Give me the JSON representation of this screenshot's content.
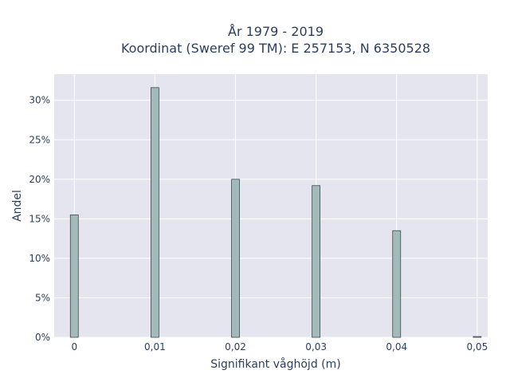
{
  "chart_data": {
    "type": "bar",
    "title_lines": [
      "År 1979 - 2019",
      "Koordinat (Sweref 99 TM): E 257153, N 6350528"
    ],
    "xlabel": "Signifikant våghöjd (m)",
    "ylabel": "Andel",
    "x": [
      0,
      0.01,
      0.02,
      0.03,
      0.04,
      0.05
    ],
    "x_tick_labels": [
      "0",
      "0,01",
      "0,02",
      "0,03",
      "0,04",
      "0,05"
    ],
    "values": [
      15.5,
      31.6,
      20.0,
      19.2,
      13.5,
      0.1
    ],
    "value_unit": "%",
    "y_tick_values": [
      0,
      5,
      10,
      15,
      20,
      25,
      30
    ],
    "y_tick_labels": [
      "0%",
      "5%",
      "10%",
      "15%",
      "20%",
      "25%",
      "30%"
    ],
    "xlim": [
      -0.0025,
      0.0513
    ],
    "ylim": [
      0,
      33.3
    ],
    "grid": true,
    "legend": "none",
    "colors": {
      "plot_background": "#e5e5f0",
      "grid": "#ffffff",
      "bar_fill": "#a3babb",
      "bar_stroke": "#3d4a4a",
      "text": "#2a3f5f"
    }
  }
}
